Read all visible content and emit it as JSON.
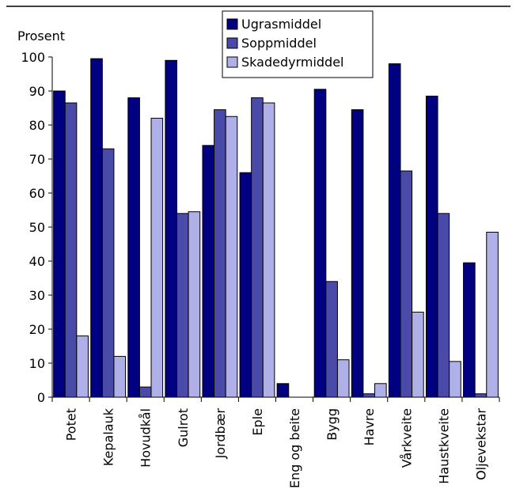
{
  "chart_data": {
    "type": "bar",
    "ylabel": "Prosent",
    "ylim": [
      0,
      100
    ],
    "yticks": [
      0,
      10,
      20,
      30,
      40,
      50,
      60,
      70,
      80,
      90,
      100
    ],
    "grid": false,
    "legend_position": "top-center",
    "categories": [
      "Potet",
      "Kepalauk",
      "Hovudkål",
      "Gulrot",
      "Jordbær",
      "Eple",
      "Eng og beite",
      "Bygg",
      "Havre",
      "Vårkveite",
      "Haustkveite",
      "Oljevekstar"
    ],
    "series": [
      {
        "name": "Ugrasmiddel",
        "color": "#000080",
        "values": [
          90,
          99.5,
          88,
          99,
          74,
          66,
          4,
          90.5,
          84.5,
          98,
          88.5,
          39.5
        ]
      },
      {
        "name": "Soppmiddel",
        "color": "#4a4aa8",
        "values": [
          86.5,
          73,
          3,
          54,
          84.5,
          88,
          0,
          34,
          1,
          66.5,
          54,
          1
        ]
      },
      {
        "name": "Skadedyrmiddel",
        "color": "#b0b0e8",
        "values": [
          18,
          12,
          82,
          54.5,
          82.5,
          86.5,
          0,
          11,
          4,
          25,
          10.5,
          48.5
        ]
      }
    ]
  }
}
